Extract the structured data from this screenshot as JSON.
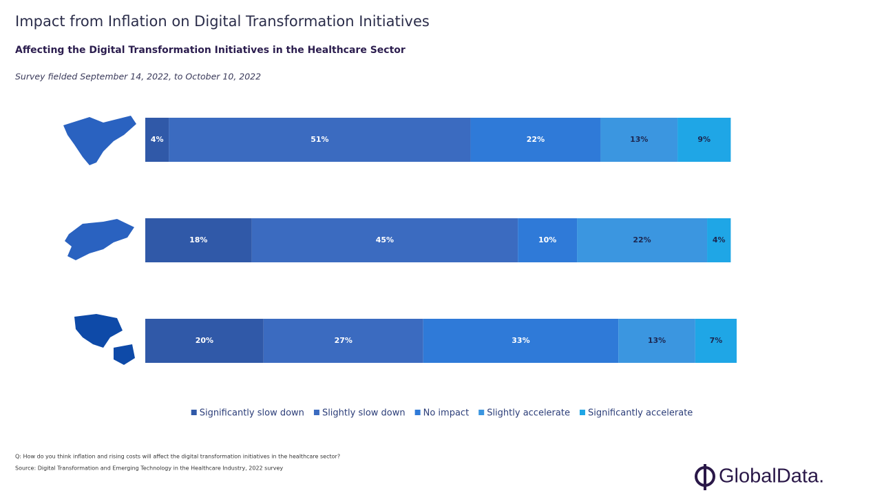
{
  "chart_data": {
    "type": "stacked-barh",
    "title": "Impact from Inflation on Digital Transformation Initiatives",
    "subtitle": "Affecting the Digital Transformation Initiatives in the Healthcare Sector",
    "note": "Survey fielded September 14, 2022, to October 10, 2022",
    "categories": [
      null,
      null,
      null
    ],
    "series": [
      {
        "name": "Significantly slow down",
        "color": "#3059a8",
        "values": [
          4,
          18,
          20
        ],
        "value_labels": [
          "4%",
          "18%",
          "20%"
        ]
      },
      {
        "name": "Slightly slow down",
        "color": "#3b6bc0",
        "values": [
          51,
          45,
          27
        ],
        "value_labels": [
          "51%",
          "45%",
          "27%"
        ]
      },
      {
        "name": "No impact",
        "color": "#2f7ad8",
        "values": [
          22,
          10,
          33
        ],
        "value_labels": [
          "22%",
          "10%",
          "33%"
        ]
      },
      {
        "name": "Slightly accelerate",
        "color": "#3b96e0",
        "values": [
          13,
          22,
          13
        ],
        "value_labels": [
          "13%",
          "22%",
          "13%"
        ]
      },
      {
        "name": "Significantly accelerate",
        "color": "#1fa6e6",
        "values": [
          9,
          4,
          7
        ],
        "value_labels": [
          "9%",
          "4%",
          "7%"
        ]
      }
    ],
    "xlim": [
      0,
      100
    ],
    "footnotes": [
      "Q: How do you think inflation and rising costs will affect the digital transformation initiatives in the healthcare sector?",
      "Source: Digital Transformation and Emerging Technology in the Healthcare Industry, 2022 survey"
    ],
    "brand": "GlobalData."
  }
}
